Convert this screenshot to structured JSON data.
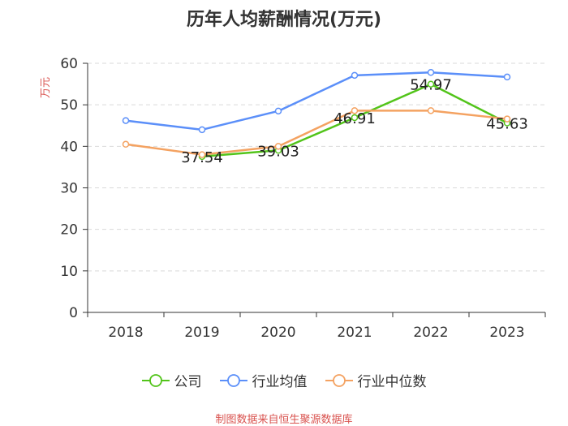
{
  "chart_data": {
    "type": "line",
    "title": "历年人均薪酬情况(万元)",
    "ylabel": "万元",
    "xlabel": "",
    "categories": [
      "2018",
      "2019",
      "2020",
      "2021",
      "2022",
      "2023"
    ],
    "ylim": [
      0,
      60
    ],
    "yticks": [
      0,
      10,
      20,
      30,
      40,
      50,
      60
    ],
    "grid": true,
    "legend_position": "bottom",
    "series": [
      {
        "name": "公司",
        "color": "#52c41a",
        "values": [
          null,
          37.54,
          39.03,
          46.91,
          54.97,
          45.63
        ],
        "data_labels": [
          "",
          "37.54",
          "39.03",
          "46.91",
          "54.97",
          "45.63"
        ]
      },
      {
        "name": "行业均值",
        "color": "#5b8ff9",
        "values": [
          46.2,
          44.0,
          48.5,
          57.1,
          57.8,
          56.7
        ],
        "data_labels": [
          "",
          "",
          "",
          "",
          "",
          ""
        ]
      },
      {
        "name": "行业中位数",
        "color": "#f4a261",
        "values": [
          40.5,
          38.0,
          40.0,
          48.6,
          48.6,
          46.6
        ],
        "data_labels": [
          "",
          "",
          "",
          "",
          "",
          ""
        ]
      }
    ]
  },
  "source": "制图数据来自恒生聚源数据库"
}
